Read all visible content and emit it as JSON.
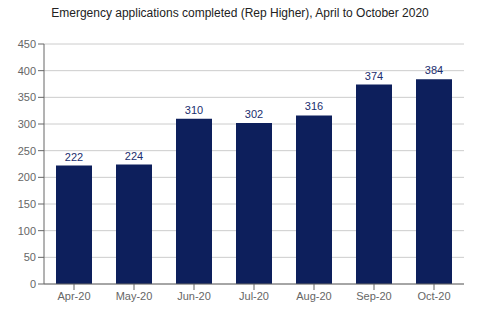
{
  "chart_data": {
    "type": "bar",
    "title": "Emergency applications completed (Rep Higher), April to October 2020",
    "categories": [
      "Apr-20",
      "May-20",
      "Jun-20",
      "Jul-20",
      "Aug-20",
      "Sep-20",
      "Oct-20"
    ],
    "values": [
      222,
      224,
      310,
      302,
      316,
      374,
      384
    ],
    "color": "#0d1f5c",
    "ylim": [
      0,
      450
    ],
    "yticks": [
      0,
      50,
      100,
      150,
      200,
      250,
      300,
      350,
      400,
      450
    ],
    "grid": true,
    "data_labels": true
  }
}
